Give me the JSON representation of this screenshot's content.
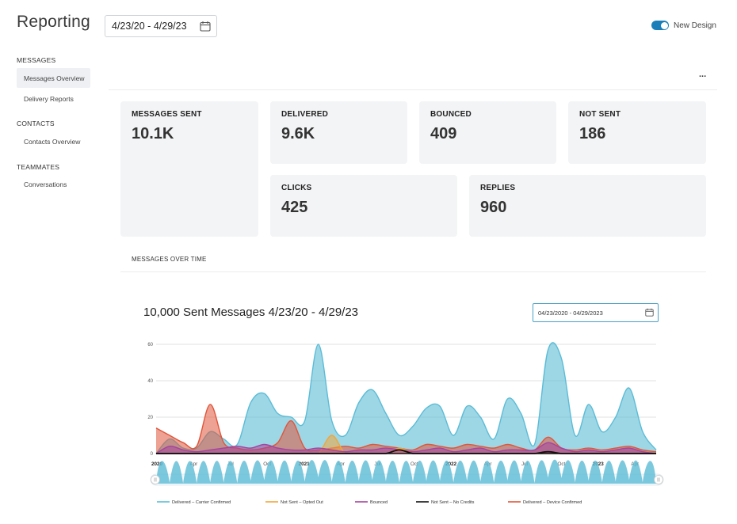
{
  "header": {
    "title": "Reporting",
    "date_range": "4/23/20 - 4/29/23",
    "toggle_label": "New Design"
  },
  "sidebar": {
    "sections": [
      {
        "title": "MESSAGES",
        "items": [
          "Messages Overview",
          "Delivery Reports"
        ]
      },
      {
        "title": "CONTACTS",
        "items": [
          "Contacts Overview"
        ]
      },
      {
        "title": "TEAMMATES",
        "items": [
          "Conversations"
        ]
      }
    ]
  },
  "more_menu": "...",
  "stats": {
    "messages_sent": {
      "label": "MESSAGES SENT",
      "value": "10.1K"
    },
    "delivered": {
      "label": "DELIVERED",
      "value": "9.6K"
    },
    "bounced": {
      "label": "BOUNCED",
      "value": "409"
    },
    "not_sent": {
      "label": "NOT SENT",
      "value": "186"
    },
    "clicks": {
      "label": "CLICKS",
      "value": "425"
    },
    "replies": {
      "label": "REPLIES",
      "value": "960"
    }
  },
  "section": {
    "title": "MESSAGES OVER TIME"
  },
  "chart_panel": {
    "title": "10,000 Sent Messages 4/23/20 - 4/29/23",
    "date_input": "04/23/2020 - 04/29/2023"
  },
  "colors": {
    "accent": "#1a7fb8",
    "delivered_carrier": "#5bbcd6",
    "not_sent_opted_out": "#f0a63a",
    "bounced": "#a4449e",
    "not_sent_no_credits": "#111111",
    "delivered_device": "#e0553a"
  },
  "chart_data": {
    "type": "area",
    "title": "",
    "y_ticks": [
      "0",
      "20",
      "40",
      "60"
    ],
    "ylim": [
      0,
      60
    ],
    "x_tick_labels": [
      "2020",
      "Apr",
      "Jul",
      "Oct",
      "2021",
      "Apr",
      "Jul",
      "Oct",
      "2022",
      "Apr",
      "Jul",
      "Oct",
      "2023",
      "Apr"
    ],
    "bold_x_ticks": [
      "2020",
      "2021",
      "2022",
      "2023"
    ],
    "x_points": 38,
    "series": [
      {
        "name": "Delivered – Carrier Confirmed",
        "color": "#5bbcd6",
        "values": [
          0,
          8,
          3,
          3,
          12,
          8,
          5,
          28,
          33,
          22,
          20,
          18,
          60,
          18,
          10,
          28,
          35,
          22,
          10,
          15,
          25,
          26,
          10,
          26,
          20,
          8,
          30,
          22,
          5,
          57,
          52,
          10,
          27,
          12,
          20,
          36,
          12,
          2
        ]
      },
      {
        "name": "Not Sent – Opted Out",
        "color": "#f0a63a",
        "values": [
          0,
          0,
          0,
          0,
          0,
          0,
          0,
          0,
          0,
          0,
          0,
          0,
          0,
          10,
          0,
          0,
          0,
          0,
          3,
          0,
          0,
          0,
          0,
          0,
          0,
          0,
          0,
          0,
          0,
          0,
          0,
          0,
          0,
          0,
          0,
          0,
          0,
          0
        ]
      },
      {
        "name": "Bounced",
        "color": "#a4449e",
        "values": [
          0,
          4,
          2,
          1,
          2,
          3,
          4,
          3,
          5,
          3,
          2,
          2,
          3,
          2,
          1,
          2,
          2,
          3,
          2,
          1,
          2,
          3,
          1,
          2,
          3,
          1,
          2,
          2,
          2,
          6,
          3,
          1,
          2,
          1,
          2,
          3,
          1,
          0
        ]
      },
      {
        "name": "Not Sent – No Credits",
        "color": "#111111",
        "values": [
          0,
          0,
          0,
          0,
          0,
          0,
          0,
          0,
          0,
          0,
          0,
          0,
          0,
          0,
          0,
          0,
          0,
          0,
          2,
          0,
          0,
          0,
          0,
          0,
          0,
          0,
          0,
          0,
          0,
          1,
          0,
          0,
          0,
          0,
          0,
          0,
          0,
          0
        ]
      },
      {
        "name": "Delivered – Device Confirmed",
        "color": "#e0553a",
        "values": [
          14,
          10,
          6,
          4,
          27,
          6,
          3,
          2,
          3,
          6,
          18,
          3,
          2,
          3,
          4,
          3,
          5,
          4,
          3,
          2,
          5,
          4,
          3,
          5,
          4,
          3,
          5,
          3,
          2,
          9,
          3,
          2,
          3,
          2,
          3,
          4,
          2,
          1
        ]
      }
    ]
  }
}
